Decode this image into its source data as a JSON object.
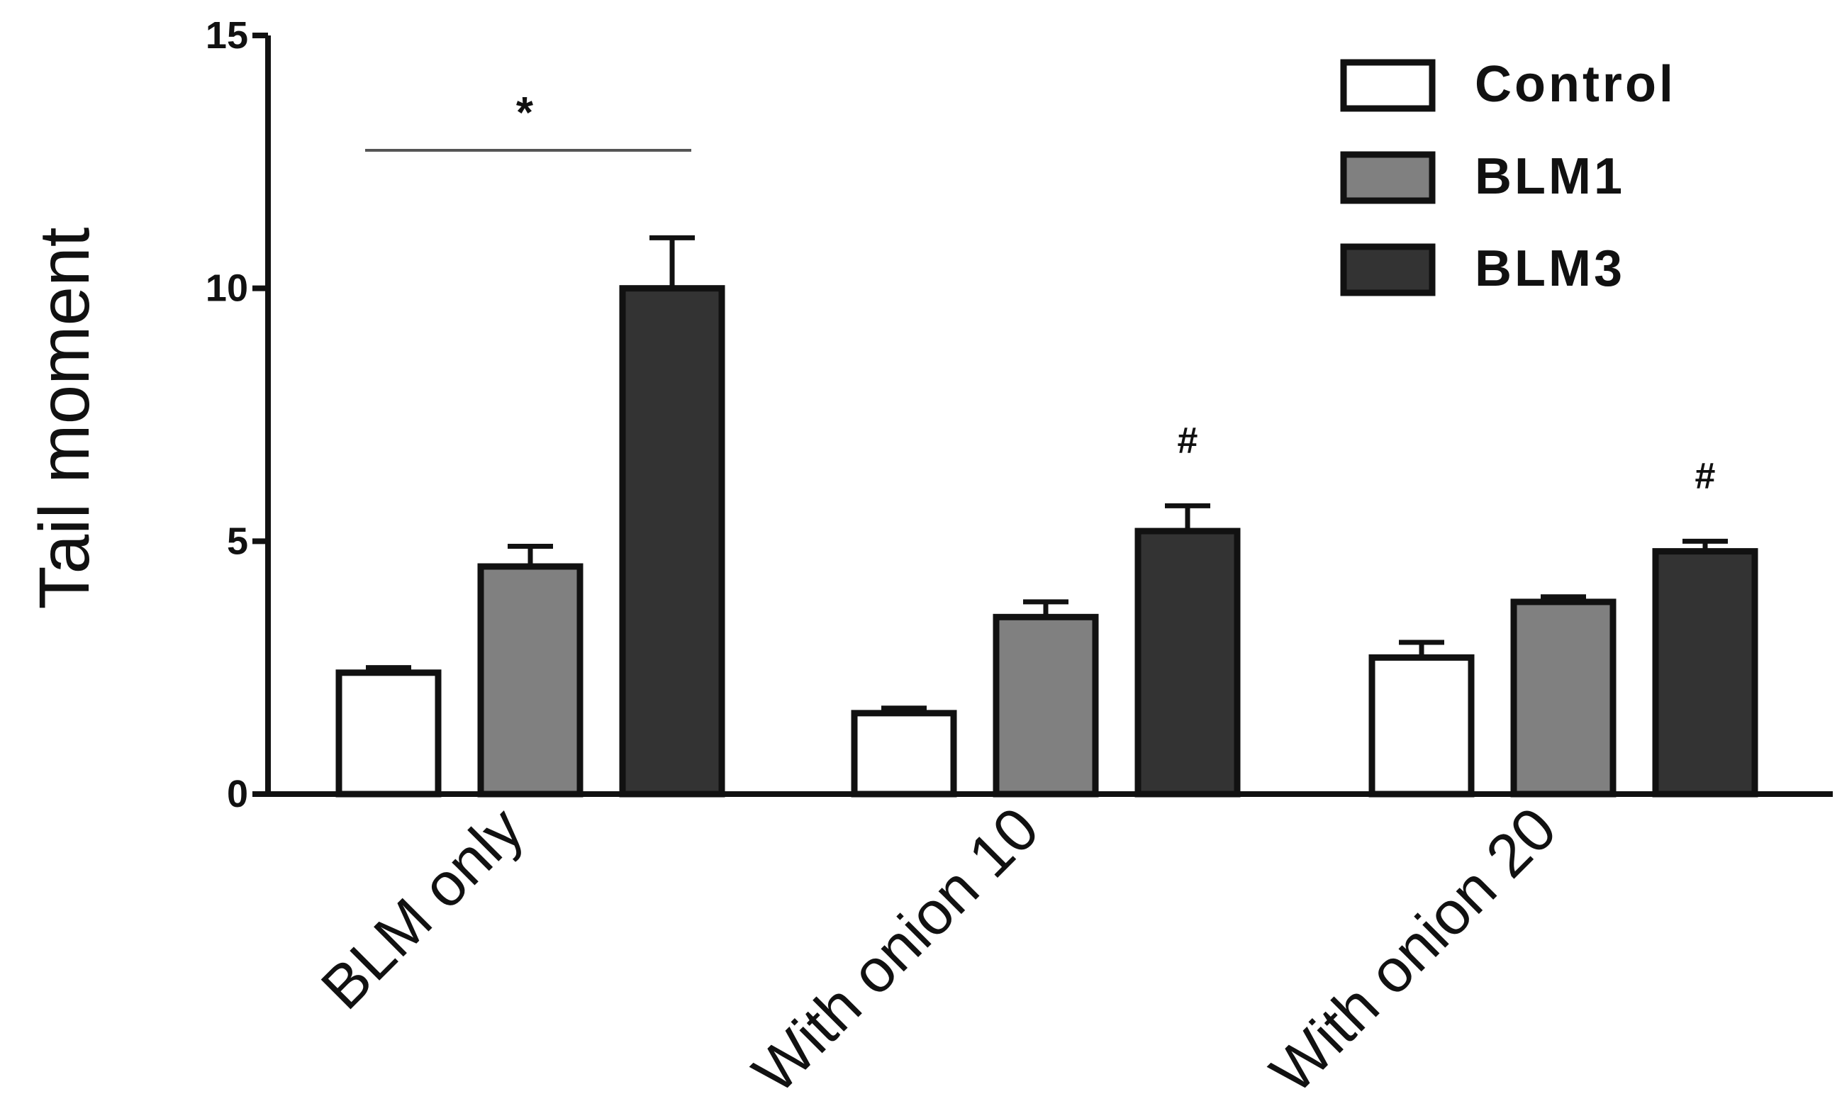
{
  "chart_data": {
    "type": "bar",
    "categories": [
      "BLM only",
      "With onion 10",
      "With onion 20"
    ],
    "series": [
      {
        "name": "Control",
        "values": [
          2.4,
          1.6,
          2.7
        ],
        "errors": [
          0.1,
          0.1,
          0.3
        ],
        "color": "#ffffff"
      },
      {
        "name": "BLM1",
        "values": [
          4.5,
          3.5,
          3.8
        ],
        "errors": [
          0.4,
          0.3,
          0.1
        ],
        "color": "#808080"
      },
      {
        "name": "BLM3",
        "values": [
          10.0,
          5.2,
          4.8
        ],
        "errors": [
          1.0,
          0.5,
          0.2
        ],
        "color": "#333333"
      }
    ],
    "ylabel": "Tail moment",
    "xlabel": "",
    "ylim": [
      0,
      15
    ],
    "yticks": [
      "0",
      "5",
      "10",
      "15"
    ],
    "legend_position": "top-right",
    "annotations": [
      {
        "text": "*",
        "category": "BLM only",
        "type": "bracket"
      },
      {
        "text": "#",
        "category": "With onion 10",
        "series": "BLM3"
      },
      {
        "text": "#",
        "category": "With onion 20",
        "series": "BLM3"
      }
    ]
  }
}
